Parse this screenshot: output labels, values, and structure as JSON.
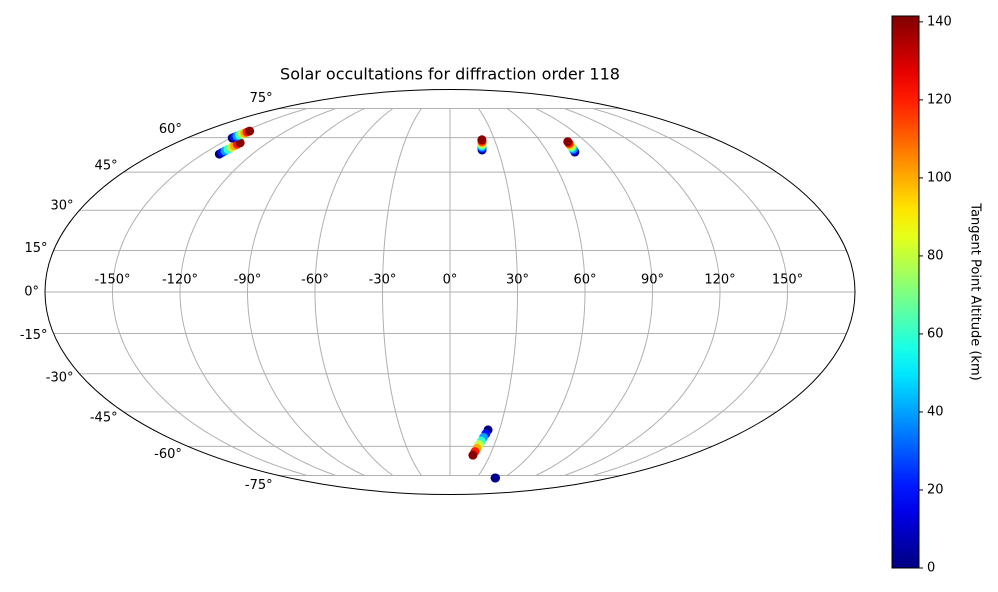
{
  "chart_data": {
    "type": "scatter",
    "projection": "mollweide",
    "title": "Solar occultations for diffraction order 118",
    "xticks": [
      {
        "value": -150,
        "label": "-150°"
      },
      {
        "value": -120,
        "label": "-120°"
      },
      {
        "value": -90,
        "label": "-90°"
      },
      {
        "value": -60,
        "label": "-60°"
      },
      {
        "value": -30,
        "label": "-30°"
      },
      {
        "value": 0,
        "label": "0°"
      },
      {
        "value": 30,
        "label": "30°"
      },
      {
        "value": 60,
        "label": "60°"
      },
      {
        "value": 90,
        "label": "90°"
      },
      {
        "value": 120,
        "label": "120°"
      },
      {
        "value": 150,
        "label": "150°"
      }
    ],
    "yticks": [
      {
        "value": -75,
        "label": "-75°"
      },
      {
        "value": -60,
        "label": "-60°"
      },
      {
        "value": -45,
        "label": "-45°"
      },
      {
        "value": -30,
        "label": "-30°"
      },
      {
        "value": -15,
        "label": "-15°"
      },
      {
        "value": 0,
        "label": "0°"
      },
      {
        "value": 15,
        "label": "15°"
      },
      {
        "value": 30,
        "label": "30°"
      },
      {
        "value": 45,
        "label": "45°"
      },
      {
        "value": 60,
        "label": "60°"
      },
      {
        "value": 75,
        "label": "75°"
      }
    ],
    "xlim": [
      -180,
      180
    ],
    "ylim": [
      -90,
      90
    ],
    "grid": true,
    "colormap": "jet",
    "colorbar_label": "Tangent Point Altitude (km)",
    "clim": [
      0,
      141.5
    ],
    "cticks": [
      0,
      20,
      40,
      60,
      80,
      100,
      120,
      140
    ],
    "x": [
      -140,
      -139.7,
      -139.4,
      -139.1,
      -138.8,
      -138.5,
      -138.2,
      -137.9,
      -149,
      -148.7,
      -148.3,
      -148.0,
      -147.7,
      -147.4,
      -147.0,
      -146.7,
      20.0,
      20.2,
      20.4,
      20.6,
      20.9,
      21.1,
      21.3,
      21.5,
      76.8,
      77.0,
      77.2,
      77.4,
      77.5,
      77.7,
      77.9,
      78.1,
      23.1,
      22.3,
      21.4,
      20.6,
      19.7,
      18.9,
      18.0,
      17.2,
      50.6,
      51.2
    ],
    "y": [
      52.6,
      53.3,
      54.0,
      54.7,
      55.5,
      56.2,
      56.9,
      57.6,
      59.8,
      60.3,
      60.7,
      61.2,
      61.7,
      62.2,
      62.6,
      63.1,
      54.4,
      55.1,
      55.7,
      56.4,
      57.0,
      57.7,
      58.3,
      59.0,
      53.5,
      54.2,
      54.8,
      55.5,
      56.1,
      56.8,
      57.4,
      58.1,
      -52.6,
      -54.3,
      -55.9,
      -57.6,
      -59.2,
      -60.9,
      -62.5,
      -64.2,
      -76.5,
      -76.5
    ],
    "c": [
      0,
      20,
      40,
      60,
      80,
      100,
      120,
      140,
      0,
      20,
      40,
      60,
      80,
      100,
      120,
      140,
      0,
      20,
      40,
      60,
      80,
      100,
      120,
      140,
      0,
      20,
      40,
      60,
      80,
      100,
      120,
      140,
      0,
      20,
      40,
      60,
      80,
      100,
      120,
      140,
      1,
      2
    ]
  }
}
